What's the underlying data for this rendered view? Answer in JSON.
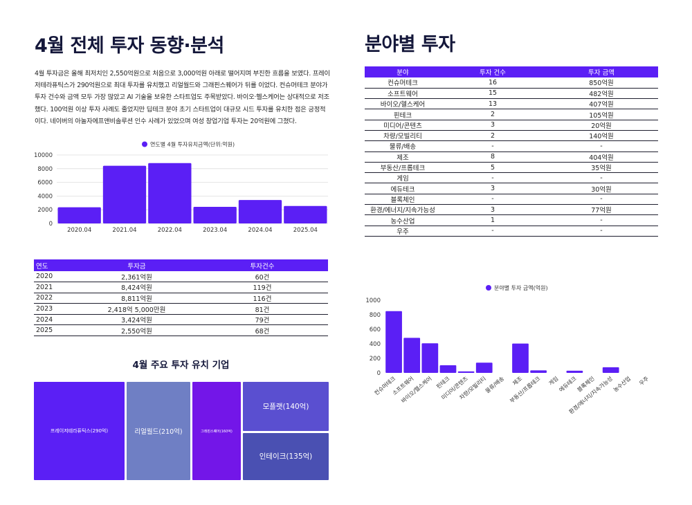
{
  "left": {
    "title": "4월 전체 투자 동향·분석",
    "intro": "4월 투자금은 올해 최저치인 2,550억원으로 처음으로 3,000억원 아래로 떨어지며 부진한 흐름을 보였다. 프레이저테라퓨틱스가 290억원으로 최대 투자를 유치했고 리얼월드와 그래핀스퀘어가 뒤를 이었다. 컨슈머테크 분야가 투자 건수와 금액 모두 가장 많았고 AI 기술을 보유한 스타트업도 주목받았다. 바이오·헬스케어는 상대적으로 저조했다. 100억원 이상 투자 사례도 줄었지만 딥테크 분야 초기 스타트업이 대규모 시드 투자를 유치한 점은 긍정적이다. 네이버의 아놀자에프앤비솔루션 인수 사례가 있었으며 여성 창업기업 투자는 20억원에 그쳤다.",
    "table": {
      "headers": [
        "연도",
        "투자금",
        "투자건수"
      ],
      "rows": [
        [
          "2020",
          "2,361억원",
          "60건"
        ],
        [
          "2021",
          "8,424억원",
          "119건"
        ],
        [
          "2022",
          "8,811억원",
          "116건"
        ],
        [
          "2023",
          "2,418억 5,000만원",
          "81건"
        ],
        [
          "2024",
          "3,424억원",
          "79건"
        ],
        [
          "2025",
          "2,550억원",
          "68건"
        ]
      ]
    },
    "treemap": {
      "title": "4월 주요 투자 유치 기업",
      "items": [
        {
          "label": "프레이저테라퓨틱스(290억)",
          "value": 290,
          "color": "#5b1ff5"
        },
        {
          "label": "리얼월드(210억)",
          "value": 210,
          "color": "#6f7fc4"
        },
        {
          "label": "그래핀스퀘어(160억)",
          "value": 160,
          "color": "#7316e8"
        },
        {
          "label": "모플랫(140억)",
          "value": 140,
          "color": "#5a4fd0"
        },
        {
          "label": "인테이크(135억)",
          "value": 135,
          "color": "#4a50b2"
        }
      ]
    }
  },
  "right": {
    "title": "분야별 투자",
    "table": {
      "headers": [
        "분야",
        "투자 건수",
        "투자 금액"
      ],
      "rows": [
        [
          "컨슈머테크",
          "16",
          "850억원"
        ],
        [
          "소프트웨어",
          "15",
          "482억원"
        ],
        [
          "바이오/헬스케어",
          "13",
          "407억원"
        ],
        [
          "핀테크",
          "2",
          "105억원"
        ],
        [
          "미디어/콘텐츠",
          "3",
          "20억원"
        ],
        [
          "차량/모빌리티",
          "2",
          "140억원"
        ],
        [
          "물류/배송",
          "-",
          "-"
        ],
        [
          "제조",
          "8",
          "404억원"
        ],
        [
          "부동산/프롭테크",
          "5",
          "35억원"
        ],
        [
          "게임",
          "-",
          "-"
        ],
        [
          "에듀테크",
          "3",
          "30억원"
        ],
        [
          "블록체인",
          "-",
          "-"
        ],
        [
          "환경/에너지/지속가능성",
          "3",
          "77억원"
        ],
        [
          "농수산업",
          "1",
          "-"
        ],
        [
          "우주",
          "-",
          "-"
        ]
      ]
    }
  },
  "chart_data": [
    {
      "type": "bar",
      "legend": "연도별 4월 투자유치금액(단위:억원)",
      "legend_position": "top",
      "categories": [
        "2020.04",
        "2021.04",
        "2022.04",
        "2023.04",
        "2024.04",
        "2025.04"
      ],
      "values": [
        2361,
        8424,
        8811,
        2418,
        3424,
        2550
      ],
      "ylim": [
        0,
        10000
      ],
      "yticks": [
        0,
        2000,
        4000,
        6000,
        8000,
        10000
      ],
      "grid": true,
      "color": "#5b1ff5"
    },
    {
      "type": "bar",
      "legend": "분야별 투자 금액(억원)",
      "legend_position": "top",
      "categories": [
        "컨슈머테크",
        "소프트웨어",
        "바이오/헬스케어",
        "핀테크",
        "미디어/콘텐츠",
        "차량/모빌리티",
        "물류/배송",
        "제조",
        "부동산/프롭테크",
        "게임",
        "에듀테크",
        "블록체인",
        "환경/에너지/지속가능성",
        "농수산업",
        "우주"
      ],
      "values": [
        850,
        482,
        407,
        105,
        20,
        140,
        0,
        404,
        35,
        0,
        30,
        0,
        77,
        0,
        0
      ],
      "ylim": [
        0,
        1000
      ],
      "yticks": [
        0,
        200,
        400,
        600,
        800,
        1000
      ],
      "grid": false,
      "color": "#5b1ff5"
    }
  ]
}
